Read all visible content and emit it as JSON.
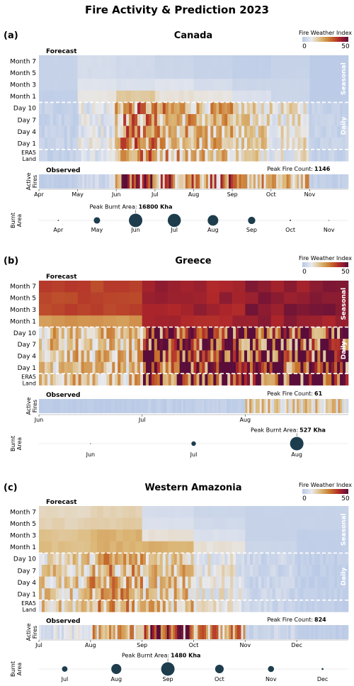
{
  "figure_title": "Fire Activity & Prediction 2023",
  "colorbar": {
    "label": "Fire Weather Index",
    "min_label": "0",
    "max_label": "50",
    "colors": [
      "#b7c8e6",
      "#e9eaee",
      "#dcb97a",
      "#c9762d",
      "#b0272a",
      "#5a0d3a"
    ]
  },
  "chart_data": [
    {
      "type": "heatmap",
      "panel_label": "(a)",
      "region": "Canada",
      "section_forecast": "Forecast",
      "section_observed": "Observed",
      "seasonal_label": "Seasonal",
      "daily_label": "Daily",
      "row_labels": [
        "Month 7",
        "Month 5",
        "Month 3",
        "Month 1",
        "Day 10",
        "Day 7",
        "Day 4",
        "Day 1",
        "ERA5 Land"
      ],
      "months": [
        "Apr",
        "May",
        "Jun",
        "Jul",
        "Aug",
        "Sep",
        "Oct",
        "Nov"
      ],
      "seasonal_fwi": [
        [
          3,
          6,
          5,
          4,
          3,
          2,
          3,
          1
        ],
        [
          3,
          6,
          5,
          4,
          3,
          2,
          3,
          1
        ],
        [
          3,
          8,
          7,
          8,
          6,
          4,
          4,
          1
        ],
        [
          2,
          11,
          17,
          12,
          11,
          7,
          4,
          1
        ]
      ],
      "daily_fwi_monthly_mean": [
        3,
        9,
        25,
        22,
        19,
        14,
        12,
        3
      ],
      "active_fires_label": "Active Fires",
      "active_fires_monthly_mean": [
        0.03,
        0.1,
        0.7,
        0.6,
        0.55,
        0.4,
        0.35,
        0.05
      ],
      "peak_fire_count_label": "Peak Fire Count:",
      "peak_fire_count": 1146,
      "burnt_area_label": "Burnt Area",
      "burnt_area_kha": [
        150,
        3800,
        16800,
        16000,
        10500,
        5000,
        180,
        40
      ],
      "peak_burnt_area_label": "Peak Burnt Area:",
      "peak_burnt_area": "16800 Kha"
    },
    {
      "type": "heatmap",
      "panel_label": "(b)",
      "region": "Greece",
      "section_forecast": "Forecast",
      "section_observed": "Observed",
      "seasonal_label": "Seasonal",
      "daily_label": "Daily",
      "row_labels": [
        "Month 7",
        "Month 5",
        "Month 3",
        "Month 1",
        "Day 10",
        "Day 7",
        "Day 4",
        "Day 1",
        "ERA5 Land"
      ],
      "months": [
        "Jun",
        "Jul",
        "Aug"
      ],
      "seasonal_fwi": [
        [
          37,
          42,
          44
        ],
        [
          36,
          42,
          44
        ],
        [
          36,
          42,
          45
        ],
        [
          25,
          41,
          43
        ]
      ],
      "daily_fwi_monthly_mean": [
        18,
        40,
        42
      ],
      "active_fires_label": "Active Fires",
      "active_fires_monthly_mean": [
        0.02,
        0.04,
        0.3
      ],
      "peak_fire_count_label": "Peak Fire Count:",
      "peak_fire_count": 61,
      "burnt_area_label": "Burnt Area",
      "burnt_area_kha": [
        2,
        60,
        527
      ],
      "peak_burnt_area_label": "Peak Burnt Area:",
      "peak_burnt_area": "527 Kha"
    },
    {
      "type": "heatmap",
      "panel_label": "(c)",
      "region": "Western Amazonia",
      "section_forecast": "Forecast",
      "section_observed": "Observed",
      "seasonal_label": "Seasonal",
      "daily_label": "Daily",
      "row_labels": [
        "Month 7",
        "Month 5",
        "Month 3",
        "Month 1",
        "Day 10",
        "Day 7",
        "Day 4",
        "Day 1",
        "ERA5 Land"
      ],
      "months": [
        "Jul",
        "Aug",
        "Sep",
        "Oct",
        "Nov",
        "Dec"
      ],
      "seasonal_fwi": [
        [
          14,
          15,
          6,
          4,
          3,
          3
        ],
        [
          15,
          16,
          7,
          5,
          3,
          3
        ],
        [
          18,
          21,
          12,
          7,
          3,
          2
        ],
        [
          19,
          21,
          21,
          12,
          4,
          2
        ]
      ],
      "daily_fwi_monthly_mean": [
        15,
        21,
        17,
        10,
        4,
        2
      ],
      "active_fires_label": "Active Fires",
      "active_fires_monthly_mean": [
        0.15,
        0.4,
        0.7,
        0.45,
        0.08,
        0.03
      ],
      "peak_fire_count_label": "Peak Fire Count:",
      "peak_fire_count": 824,
      "burnt_area_label": "Burnt Area",
      "burnt_area_kha": [
        250,
        820,
        1480,
        600,
        300,
        30
      ],
      "peak_burnt_area_label": "Peak Burnt Area:",
      "peak_burnt_area": "1480 Kha"
    }
  ]
}
